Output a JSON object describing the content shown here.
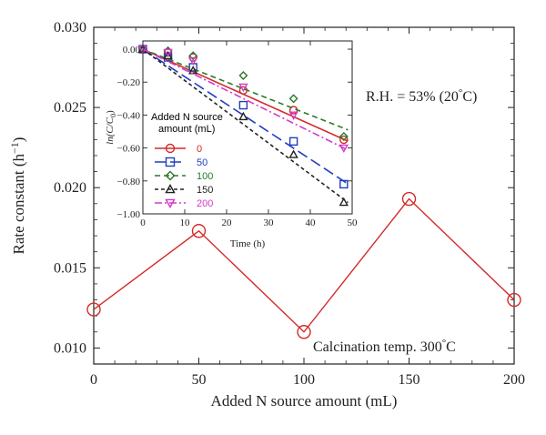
{
  "chart_data": [
    {
      "type": "line",
      "xlabel": "Added N source amount (mL)",
      "ylabel": "Rate constant (h",
      "ylabel_sup": "−1",
      "ylabel_tail": ")",
      "xlim": [
        0,
        200
      ],
      "ylim": [
        0.009,
        0.03
      ],
      "x_ticks": [
        "0",
        "50",
        "100",
        "150",
        "200"
      ],
      "y_ticks": [
        "0.010",
        "0.015",
        "0.020",
        "0.025",
        "0.030"
      ],
      "series": [
        {
          "x": [
            0,
            50,
            100,
            150,
            200
          ],
          "y": [
            0.0124,
            0.0173,
            0.011,
            0.0193,
            0.013
          ],
          "color": "#d42a2a",
          "marker": "circle"
        }
      ],
      "annotations": {
        "rh_prefix": "R.H. = 53% (20",
        "rh_suffix": "C)",
        "calc_prefix": "Calcination temp. 300",
        "calc_suffix": "C",
        "degree": "°"
      }
    },
    {
      "type": "line",
      "xlabel": "Time (h)",
      "ylabel": "ln(C/C",
      "ylabel_sub": "0",
      "ylabel_tail": ")",
      "xlim": [
        0,
        50
      ],
      "ylim": [
        -1.0,
        0.05
      ],
      "x_ticks": [
        "0",
        "10",
        "20",
        "30",
        "40",
        "50"
      ],
      "y_ticks": [
        "0.00",
        "−0.20",
        "−0.40",
        "−0.60",
        "−0.80",
        "−1.00"
      ],
      "legend": {
        "title_line1": "Added N source",
        "title_line2": "amount (mL)",
        "position": "left-center"
      },
      "series": [
        {
          "name": "0",
          "color": "#d42a2a",
          "marker": "circle",
          "dash": "",
          "x": [
            0,
            6,
            12,
            24,
            36,
            48
          ],
          "y": [
            0.0,
            -0.02,
            -0.05,
            -0.25,
            -0.37,
            -0.55
          ],
          "fit": [
            0.0,
            -0.0114
          ]
        },
        {
          "name": "50",
          "color": "#1f3ec0",
          "marker": "square",
          "dash": "12,5",
          "x": [
            0,
            6,
            12,
            24,
            36,
            48
          ],
          "y": [
            0.0,
            -0.05,
            -0.11,
            -0.34,
            -0.56,
            -0.82
          ],
          "fit": [
            0.0,
            -0.0167
          ]
        },
        {
          "name": "100",
          "color": "#2a7a2a",
          "marker": "diamond",
          "dash": "6,4",
          "x": [
            0,
            6,
            12,
            24,
            36,
            48
          ],
          "y": [
            0.0,
            -0.01,
            -0.04,
            -0.16,
            -0.3,
            -0.53
          ],
          "fit": [
            0.0,
            -0.01
          ]
        },
        {
          "name": "150",
          "color": "#222222",
          "marker": "triangle",
          "dash": "4,3",
          "x": [
            0,
            6,
            12,
            24,
            36,
            48
          ],
          "y": [
            0.0,
            -0.04,
            -0.13,
            -0.41,
            -0.64,
            -0.93
          ],
          "fit": [
            0.0,
            -0.019
          ]
        },
        {
          "name": "200",
          "color": "#d43ac8",
          "marker": "tridown",
          "dash": "8,3,2,3",
          "x": [
            0,
            6,
            12,
            24,
            36,
            48
          ],
          "y": [
            0.0,
            -0.02,
            -0.07,
            -0.23,
            -0.4,
            -0.6
          ],
          "fit": [
            0.0,
            -0.0125
          ]
        }
      ]
    }
  ]
}
